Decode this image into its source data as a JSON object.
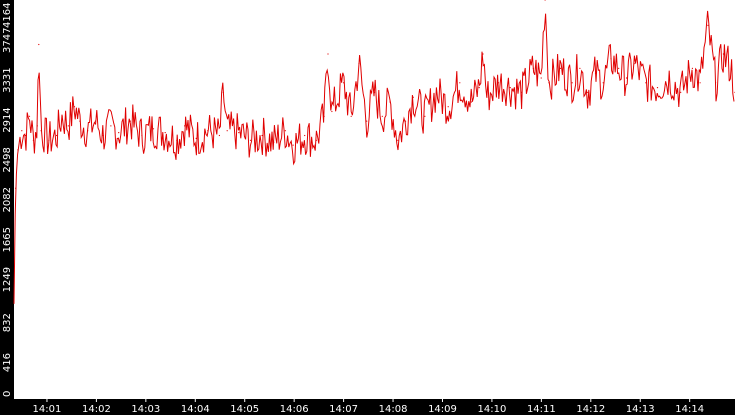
{
  "chart_data": {
    "type": "line",
    "title": "",
    "xlabel": "",
    "ylabel": "",
    "ylim": [
      0,
      4164
    ],
    "y_ticks": [
      "0",
      "416",
      "832",
      "1249",
      "1665",
      "2082",
      "2498",
      "2914",
      "3331",
      "3747",
      "4164"
    ],
    "x_ticks": [
      "14:01",
      "14:02",
      "14:03",
      "14:04",
      "14:05",
      "14:06",
      "14:07",
      "14:08",
      "14:09",
      "14:10",
      "14:11",
      "14:12",
      "14:13",
      "14:14"
    ],
    "x_range_minutes": [
      "14:00:20",
      "14:14:55"
    ],
    "grid": false,
    "legend": "none",
    "colors": {
      "line": "#e00000",
      "axis_band": "#000000",
      "tick_text": "#ffffff",
      "background": "#ffffff"
    },
    "series": [
      {
        "values": [
          [
            0.0,
            1000
          ],
          [
            0.02,
            2200
          ],
          [
            0.05,
            2600
          ],
          [
            0.1,
            2800
          ],
          [
            0.15,
            2750
          ],
          [
            0.2,
            2950
          ],
          [
            0.25,
            2700
          ],
          [
            0.3,
            2850
          ],
          [
            0.32,
            3700
          ],
          [
            0.35,
            2800
          ],
          [
            0.45,
            2700
          ],
          [
            0.55,
            2750
          ],
          [
            0.62,
            2950
          ],
          [
            0.7,
            2850
          ],
          [
            0.78,
            3050
          ],
          [
            0.85,
            2900
          ],
          [
            0.95,
            2800
          ],
          [
            1.05,
            2900
          ],
          [
            1.15,
            2750
          ],
          [
            1.25,
            2850
          ],
          [
            1.35,
            2780
          ],
          [
            1.5,
            2900
          ],
          [
            1.65,
            2750
          ],
          [
            1.8,
            2820
          ],
          [
            1.95,
            2780
          ],
          [
            2.1,
            2700
          ],
          [
            2.2,
            2850
          ],
          [
            2.35,
            2720
          ],
          [
            2.5,
            2800
          ],
          [
            2.65,
            2750
          ],
          [
            2.7,
            3200
          ],
          [
            2.75,
            2800
          ],
          [
            2.9,
            2780
          ],
          [
            3.05,
            2700
          ],
          [
            3.2,
            2750
          ],
          [
            3.35,
            2680
          ],
          [
            3.5,
            2800
          ],
          [
            3.6,
            2650
          ],
          [
            3.75,
            2750
          ],
          [
            3.9,
            2700
          ],
          [
            4.0,
            2950
          ],
          [
            4.05,
            3600
          ],
          [
            4.1,
            3000
          ],
          [
            4.25,
            3300
          ],
          [
            4.35,
            2950
          ],
          [
            4.45,
            3500
          ],
          [
            4.55,
            2900
          ],
          [
            4.65,
            3200
          ],
          [
            4.75,
            2950
          ],
          [
            4.85,
            3100
          ],
          [
            4.95,
            2700
          ],
          [
            5.05,
            2900
          ],
          [
            5.15,
            3150
          ],
          [
            5.3,
            2950
          ],
          [
            5.45,
            3200
          ],
          [
            5.6,
            3050
          ],
          [
            5.75,
            3300
          ],
          [
            5.9,
            3100
          ],
          [
            6.0,
            3250
          ],
          [
            6.05,
            3600
          ],
          [
            6.1,
            3150
          ],
          [
            6.25,
            3300
          ],
          [
            6.4,
            3250
          ],
          [
            6.55,
            3200
          ],
          [
            6.7,
            3450
          ],
          [
            6.8,
            3350
          ],
          [
            6.85,
            4164
          ],
          [
            6.9,
            3300
          ],
          [
            7.05,
            3450
          ],
          [
            7.2,
            3300
          ],
          [
            7.3,
            3450
          ],
          [
            7.4,
            3200
          ],
          [
            7.5,
            3400
          ],
          [
            7.6,
            3300
          ],
          [
            7.7,
            3550
          ],
          [
            7.8,
            3450
          ],
          [
            7.9,
            3350
          ],
          [
            8.0,
            3500
          ],
          [
            8.15,
            3300
          ],
          [
            8.3,
            3250
          ],
          [
            8.45,
            3350
          ],
          [
            8.6,
            3200
          ],
          [
            8.75,
            3450
          ],
          [
            8.85,
            3300
          ],
          [
            8.95,
            3900
          ],
          [
            9.05,
            3300
          ],
          [
            9.15,
            3600
          ],
          [
            9.25,
            3450
          ],
          [
            9.3,
            3200
          ]
        ]
      }
    ]
  }
}
